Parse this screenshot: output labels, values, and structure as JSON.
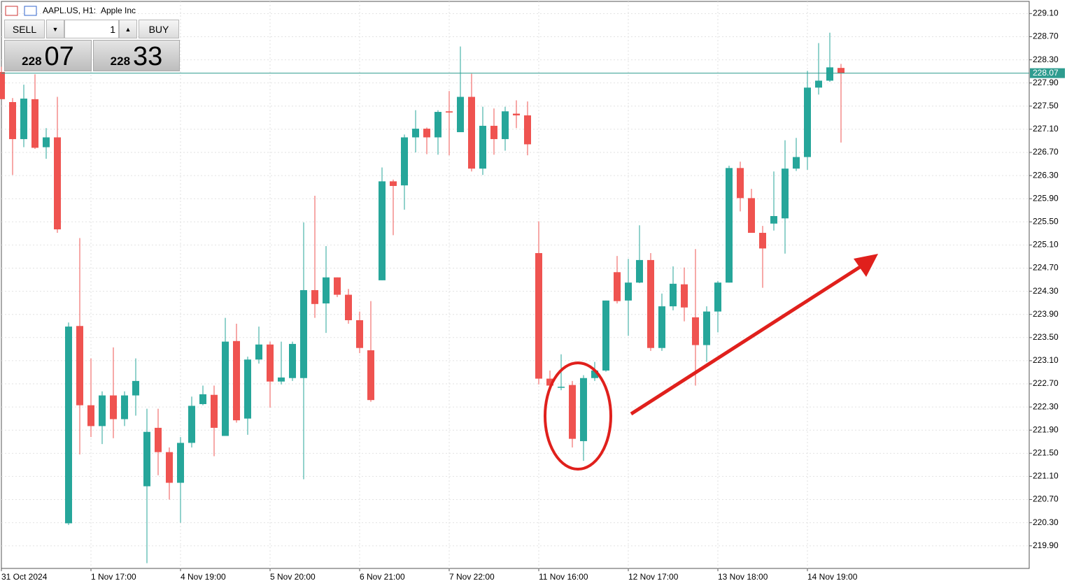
{
  "chart_data": {
    "type": "candlestick",
    "symbol": "AAPL.US, H1:",
    "description": "Apple Inc",
    "categories": [
      "31 Oct 2024",
      null,
      null,
      null,
      null,
      null,
      null,
      null,
      "1 Nov 17:00",
      null,
      null,
      null,
      null,
      null,
      null,
      null,
      "4 Nov 19:00",
      null,
      null,
      null,
      null,
      null,
      null,
      null,
      "5 Nov 20:00",
      null,
      null,
      null,
      null,
      null,
      null,
      null,
      "6 Nov 21:00",
      null,
      null,
      null,
      null,
      null,
      null,
      null,
      "7 Nov 22:00",
      null,
      null,
      null,
      null,
      null,
      null,
      null,
      "11 Nov 16:00",
      null,
      null,
      null,
      null,
      null,
      null,
      null,
      "12 Nov 17:00",
      null,
      null,
      null,
      null,
      null,
      null,
      null,
      "13 Nov 18:00",
      null,
      null,
      null,
      null,
      null,
      null,
      null,
      "14 Nov 19:00",
      null,
      null,
      null
    ],
    "open": [
      228.09,
      227.57,
      226.93,
      227.62,
      226.79,
      226.96,
      220.29,
      223.7,
      222.33,
      221.97,
      222.5,
      222.09,
      222.5,
      220.93,
      221.94,
      221.52,
      220.99,
      221.68,
      222.35,
      222.51,
      221.8,
      223.44,
      222.1,
      223.12,
      223.38,
      222.74,
      222.8,
      222.8,
      224.32,
      224.09,
      224.54,
      224.24,
      223.8,
      223.28,
      224.49,
      226.2,
      226.13,
      226.96,
      227.11,
      226.96,
      227.41,
      227.05,
      227.66,
      226.42,
      227.16,
      226.93,
      227.37,
      227.34,
      224.96,
      222.79,
      222.64,
      222.68,
      221.71,
      222.8,
      222.93,
      224.63,
      224.14,
      224.45,
      224.84,
      223.32,
      224.04,
      224.42,
      223.85,
      223.37,
      223.95,
      224.45,
      226.43,
      225.91,
      225.31,
      225.47,
      225.56,
      226.42,
      226.62,
      227.82,
      227.94,
      228.16
    ],
    "high": [
      228.18,
      227.64,
      227.87,
      228.05,
      227.12,
      227.66,
      223.76,
      225.22,
      223.14,
      222.57,
      223.33,
      222.57,
      223.14,
      222.27,
      222.27,
      221.6,
      221.78,
      222.48,
      222.67,
      222.67,
      223.84,
      223.74,
      223.17,
      223.69,
      223.43,
      223.43,
      223.43,
      225.49,
      225.95,
      225.08,
      224.54,
      224.34,
      223.95,
      224.13,
      226.44,
      226.23,
      227.01,
      227.43,
      227.13,
      227.43,
      227.76,
      228.53,
      228.06,
      227.49,
      227.46,
      227.49,
      227.6,
      227.58,
      225.51,
      222.93,
      223.21,
      222.75,
      222.85,
      223.08,
      224.14,
      224.91,
      224.86,
      225.44,
      224.96,
      224.26,
      224.73,
      224.71,
      225.03,
      224.04,
      224.48,
      226.47,
      226.54,
      226.07,
      225.43,
      226.37,
      226.91,
      226.95,
      228.11,
      228.59,
      228.77,
      228.23
    ],
    "low": [
      227.62,
      226.31,
      226.79,
      226.76,
      226.59,
      225.31,
      220.26,
      221.48,
      221.78,
      221.66,
      221.76,
      221.97,
      222.15,
      219.6,
      221.12,
      220.7,
      220.3,
      221.6,
      222.33,
      221.45,
      221.8,
      222.03,
      221.82,
      223.05,
      222.29,
      222.69,
      222.75,
      221.05,
      223.84,
      223.58,
      224.2,
      223.74,
      223.23,
      222.39,
      224.49,
      225.27,
      225.71,
      226.7,
      226.67,
      226.66,
      226.65,
      227.05,
      226.37,
      226.31,
      226.66,
      226.73,
      227.12,
      226.65,
      222.69,
      222.63,
      222.59,
      221.6,
      221.37,
      222.75,
      222.91,
      224.09,
      223.53,
      224.44,
      223.27,
      223.27,
      223.97,
      223.78,
      222.67,
      223.08,
      223.59,
      224.45,
      225.68,
      225.31,
      224.36,
      225.35,
      224.95,
      226.38,
      226.4,
      227.7,
      227.92,
      226.87
    ],
    "close": [
      227.62,
      226.93,
      227.63,
      226.78,
      226.96,
      225.37,
      223.69,
      222.33,
      221.97,
      222.5,
      222.09,
      222.5,
      222.75,
      221.87,
      221.52,
      220.99,
      221.68,
      222.32,
      222.52,
      221.94,
      223.43,
      222.07,
      223.12,
      223.38,
      222.74,
      222.81,
      223.39,
      224.32,
      224.08,
      224.54,
      224.24,
      223.8,
      223.32,
      222.42,
      226.2,
      226.12,
      226.96,
      227.11,
      226.96,
      227.4,
      227.39,
      227.66,
      226.42,
      227.16,
      226.93,
      227.41,
      227.34,
      226.84,
      222.79,
      222.67,
      222.65,
      221.75,
      222.8,
      222.93,
      224.14,
      224.13,
      224.45,
      224.84,
      223.32,
      224.04,
      224.43,
      224.02,
      223.37,
      223.95,
      224.45,
      226.43,
      225.91,
      225.31,
      225.04,
      225.6,
      226.42,
      226.62,
      227.82,
      227.94,
      228.17,
      228.07
    ],
    "up_color": "#26a69a",
    "down_color": "#ef5350",
    "current_price": 228.07,
    "ylim": [
      219.51,
      229.31
    ],
    "yticks": [
      {
        "value": 229.1,
        "label": "229.10"
      },
      {
        "value": 228.7,
        "label": "228.70"
      },
      {
        "value": 228.3,
        "label": "228.30"
      },
      {
        "value": 227.9,
        "label": "227.90"
      },
      {
        "value": 227.5,
        "label": "227.50"
      },
      {
        "value": 227.1,
        "label": "227.10"
      },
      {
        "value": 226.7,
        "label": "226.70"
      },
      {
        "value": 226.3,
        "label": "226.30"
      },
      {
        "value": 225.9,
        "label": "225.90"
      },
      {
        "value": 225.5,
        "label": "225.50"
      },
      {
        "value": 225.1,
        "label": "225.10"
      },
      {
        "value": 224.7,
        "label": "224.70"
      },
      {
        "value": 224.3,
        "label": "224.30"
      },
      {
        "value": 223.9,
        "label": "223.90"
      },
      {
        "value": 223.5,
        "label": "223.50"
      },
      {
        "value": 223.1,
        "label": "223.10"
      },
      {
        "value": 222.7,
        "label": "222.70"
      },
      {
        "value": 222.3,
        "label": "222.30"
      },
      {
        "value": 221.9,
        "label": "221.90"
      },
      {
        "value": 221.5,
        "label": "221.50"
      },
      {
        "value": 221.1,
        "label": "221.10"
      },
      {
        "value": 220.7,
        "label": "220.70"
      },
      {
        "value": 220.3,
        "label": "220.30"
      },
      {
        "value": 219.9,
        "label": "219.90"
      }
    ],
    "grid": true
  },
  "trade_panel": {
    "sell": "SELL",
    "buy": "BUY",
    "volume": "1",
    "bid_big": "228",
    "bid_small": "07",
    "ask_big": "228",
    "ask_small": "33"
  }
}
